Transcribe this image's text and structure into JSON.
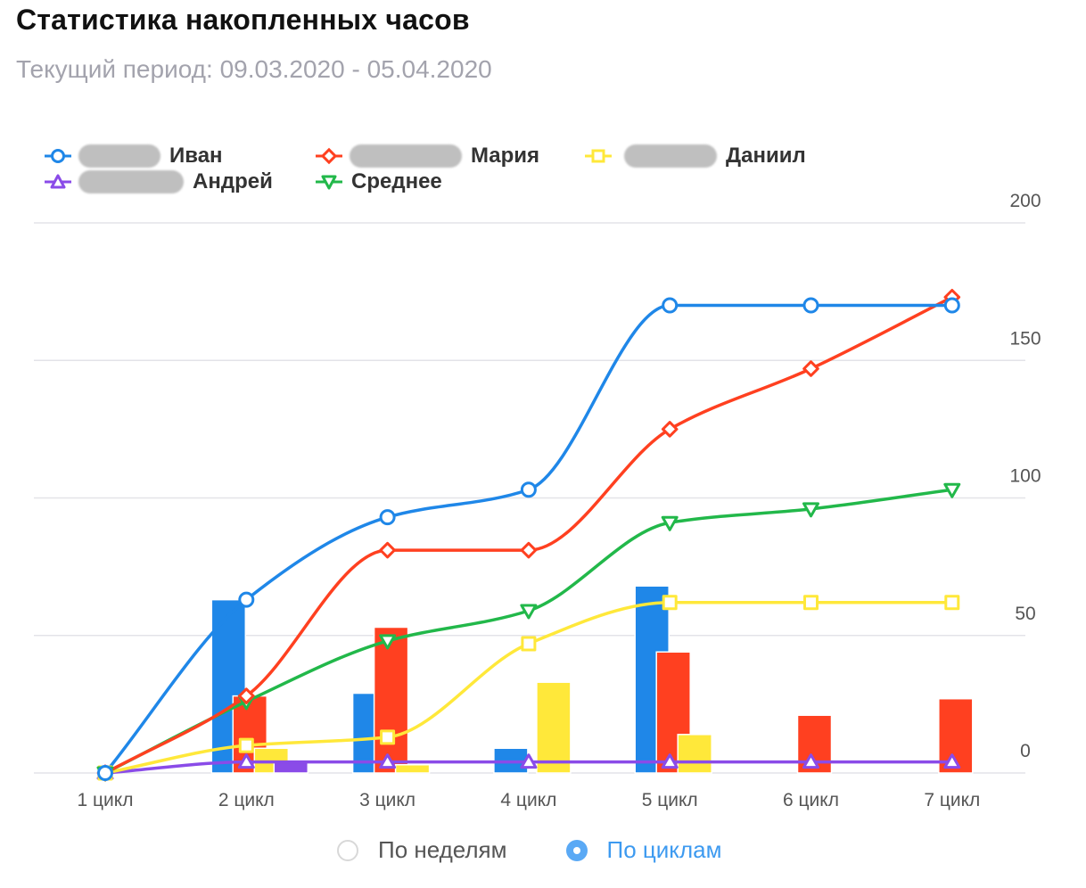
{
  "header": {
    "title": "Статистика накопленных часов",
    "subtitle": "Текущий период: 09.03.2020 - 05.04.2020"
  },
  "chart_data": {
    "type": "bar+line",
    "categories": [
      "1 цикл",
      "2 цикл",
      "3 цикл",
      "4 цикл",
      "5 цикл",
      "6 цикл",
      "7 цикл"
    ],
    "ylim": [
      0,
      200
    ],
    "yticks": [
      0,
      50,
      100,
      150,
      200
    ],
    "grid": true,
    "legend_position": "top-left",
    "series": [
      {
        "name": "Иван",
        "color": "#1f87e8",
        "marker": "circle",
        "line": [
          0,
          63,
          93,
          103,
          170,
          170,
          170
        ],
        "bars": [
          0,
          63,
          29,
          9,
          68,
          0,
          0
        ]
      },
      {
        "name": "Мария",
        "color": "#ff4020",
        "marker": "diamond",
        "line": [
          0,
          28,
          81,
          81,
          125,
          147,
          173
        ],
        "bars": [
          0,
          28,
          53,
          0,
          44,
          21,
          27
        ]
      },
      {
        "name": "Даниил",
        "color": "#ffe83a",
        "marker": "square",
        "line": [
          0,
          10,
          13,
          47,
          62,
          62,
          62
        ],
        "bars": [
          0,
          9,
          3,
          33,
          14,
          0,
          0
        ]
      },
      {
        "name": "Андрей",
        "color": "#8a4be8",
        "marker": "triangle-up",
        "line": [
          0,
          4,
          4,
          4,
          4,
          4,
          4
        ],
        "bars": [
          0,
          4,
          0,
          0,
          0,
          0,
          0
        ]
      },
      {
        "name": "Среднее",
        "color": "#22b84a",
        "marker": "triangle-down",
        "line": [
          0,
          26,
          48,
          59,
          91,
          96,
          103
        ]
      }
    ]
  },
  "view_toggle": {
    "options": [
      {
        "label": "По неделям",
        "selected": false
      },
      {
        "label": "По циклам",
        "selected": true
      }
    ]
  }
}
